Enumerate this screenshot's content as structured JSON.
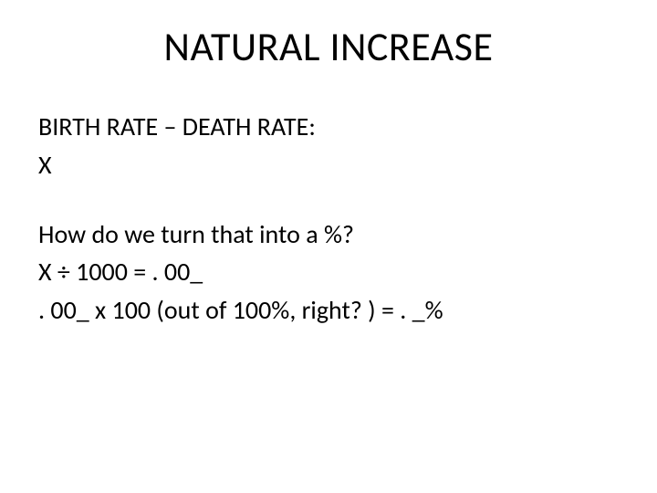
{
  "type": "slide",
  "background_color": "#ffffff",
  "text_color": "#000000",
  "font_family": "Calibri",
  "title": {
    "text": "NATURAL INCREASE",
    "fontsize": 44,
    "align": "center"
  },
  "body": {
    "fontsize": 28,
    "lines": {
      "l1": "BIRTH RATE – DEATH RATE:",
      "l2": "X",
      "l3": "How do we turn that into a %?",
      "l4": "X ÷ 1000 = . 00_",
      "l5": ". 00_ x 100 (out of 100%, right? ) = . _%"
    }
  }
}
